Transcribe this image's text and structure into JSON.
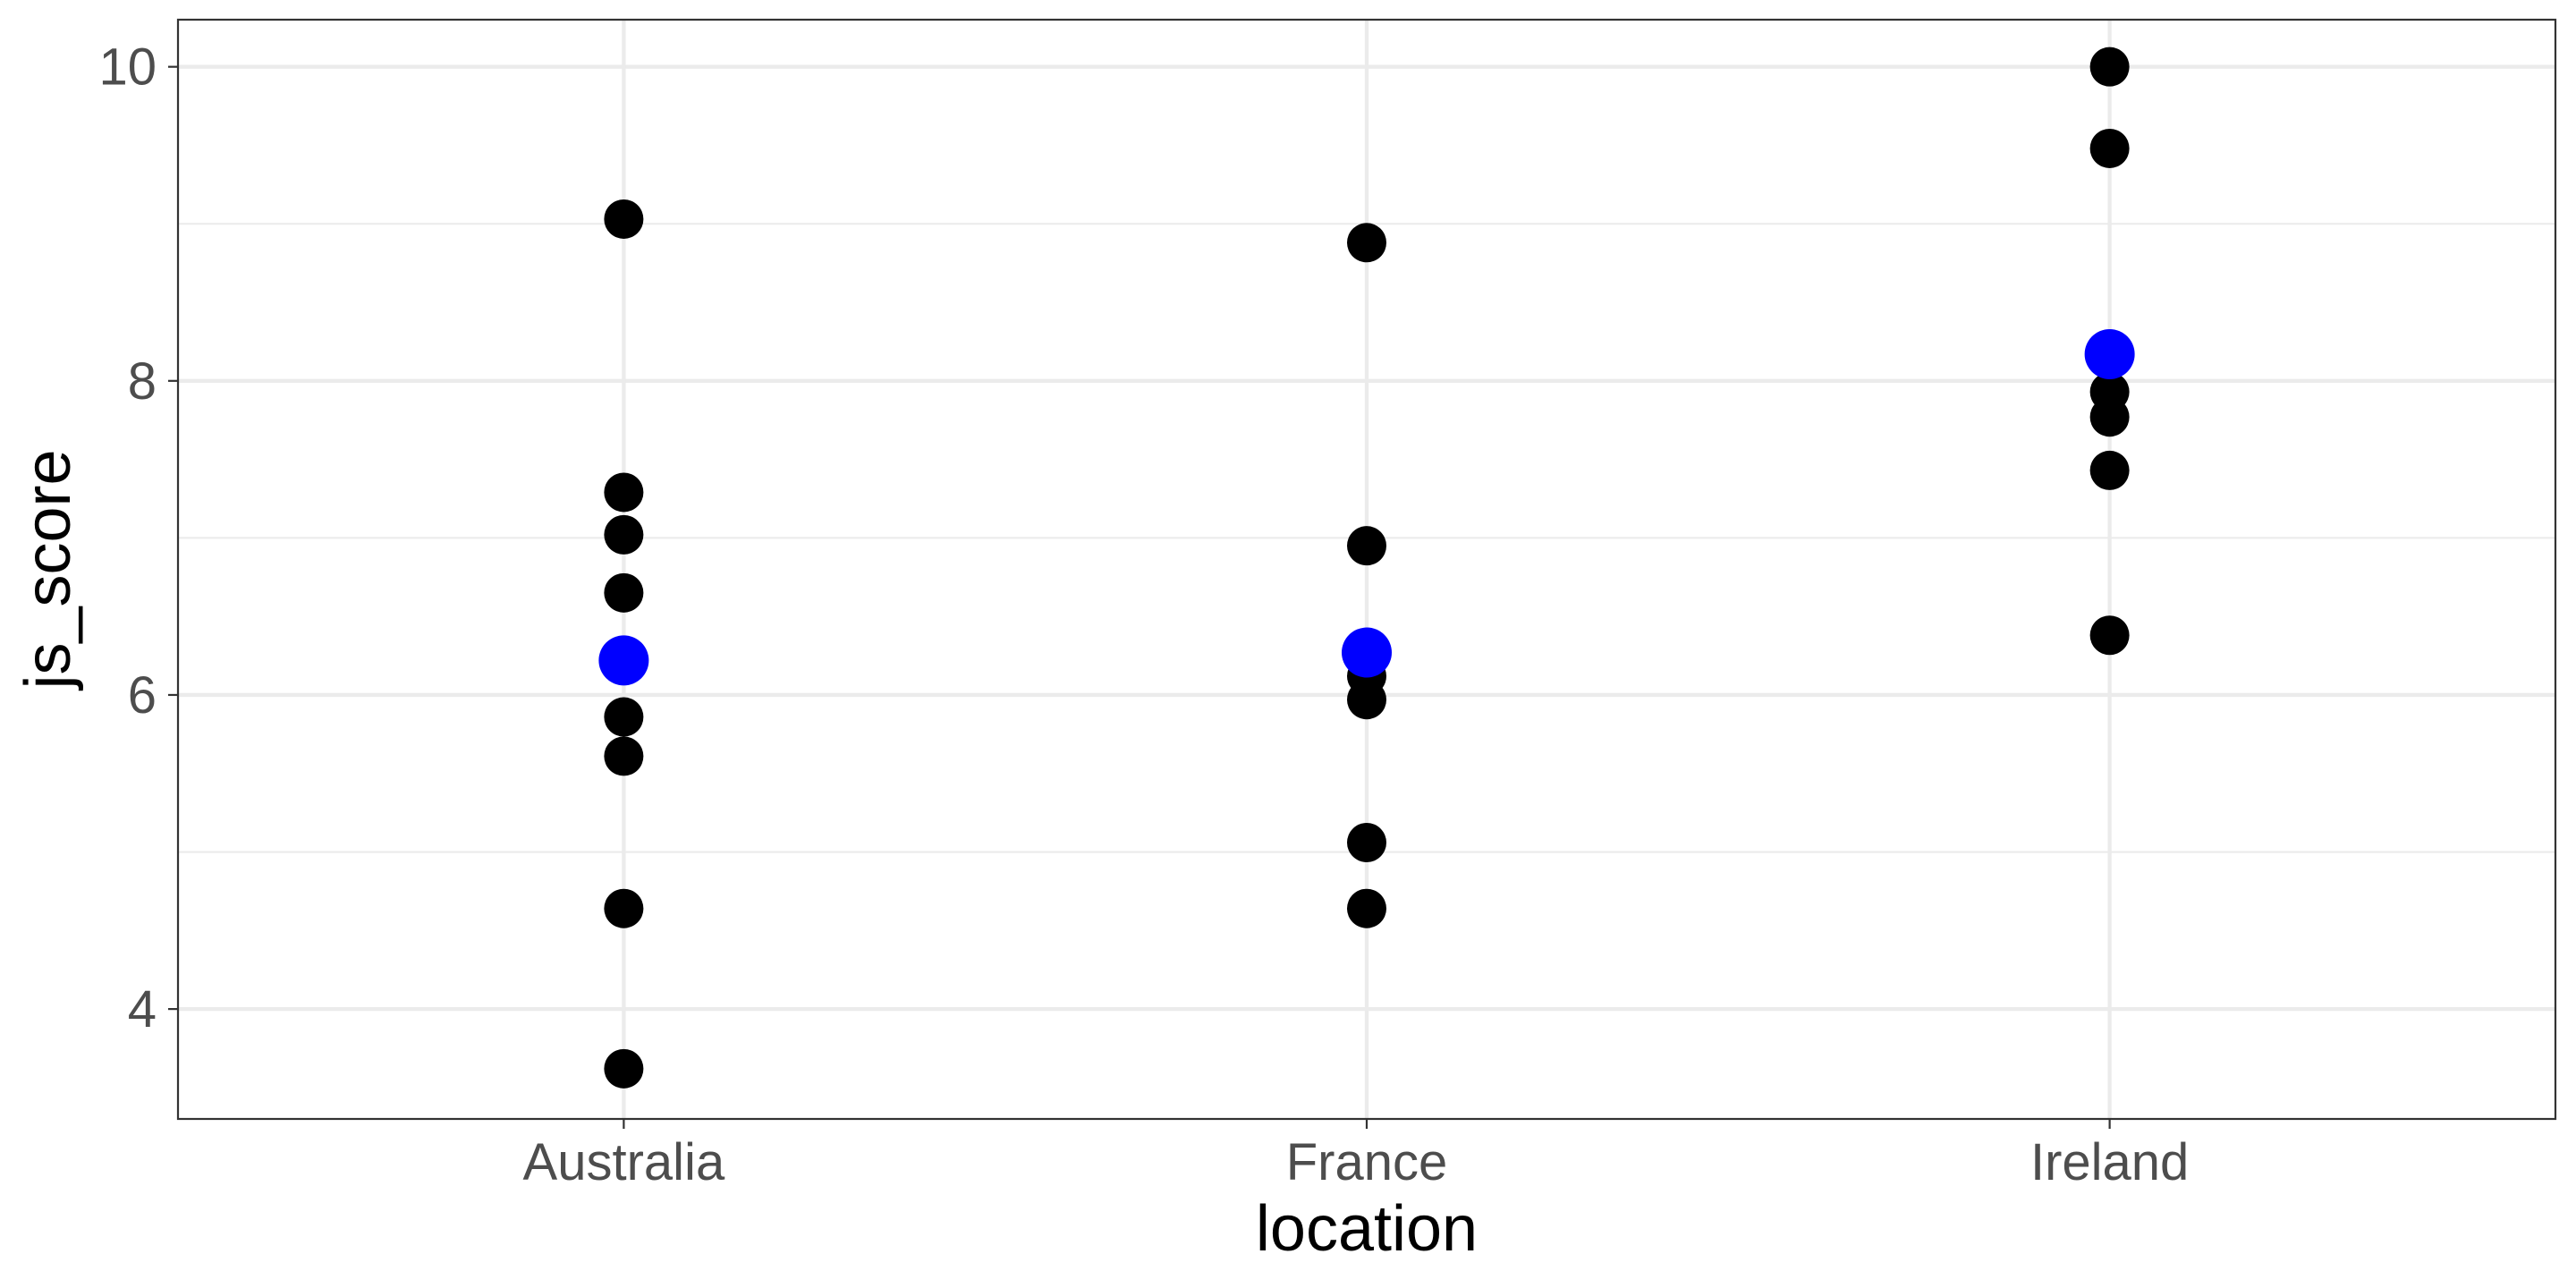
{
  "chart_data": {
    "type": "scatter",
    "title": "",
    "xlabel": "location",
    "ylabel": "js_score",
    "categories": [
      "Australia",
      "France",
      "Ireland"
    ],
    "ylim": [
      3.3,
      10.3
    ],
    "y_ticks": [
      4,
      6,
      8,
      10
    ],
    "y_tick_labels": [
      "4",
      "6",
      "8",
      "10"
    ],
    "grid": true,
    "legend": "none",
    "series": [
      {
        "color": "#000000",
        "points": [
          {
            "x": "Australia",
            "y": 9.03
          },
          {
            "x": "Australia",
            "y": 7.29
          },
          {
            "x": "Australia",
            "y": 7.02
          },
          {
            "x": "Australia",
            "y": 6.65
          },
          {
            "x": "Australia",
            "y": 5.86
          },
          {
            "x": "Australia",
            "y": 5.61
          },
          {
            "x": "Australia",
            "y": 4.64
          },
          {
            "x": "Australia",
            "y": 3.62
          },
          {
            "x": "France",
            "y": 8.88
          },
          {
            "x": "France",
            "y": 6.95
          },
          {
            "x": "France",
            "y": 6.12
          },
          {
            "x": "France",
            "y": 5.97
          },
          {
            "x": "France",
            "y": 5.06
          },
          {
            "x": "France",
            "y": 4.64
          },
          {
            "x": "Ireland",
            "y": 10.0
          },
          {
            "x": "Ireland",
            "y": 9.48
          },
          {
            "x": "Ireland",
            "y": 7.93
          },
          {
            "x": "Ireland",
            "y": 7.77
          },
          {
            "x": "Ireland",
            "y": 7.43
          },
          {
            "x": "Ireland",
            "y": 6.38
          }
        ]
      },
      {
        "color": "#0000ff",
        "points": [
          {
            "x": "Australia",
            "y": 6.22
          },
          {
            "x": "France",
            "y": 6.27
          },
          {
            "x": "Ireland",
            "y": 8.17
          }
        ]
      }
    ]
  }
}
